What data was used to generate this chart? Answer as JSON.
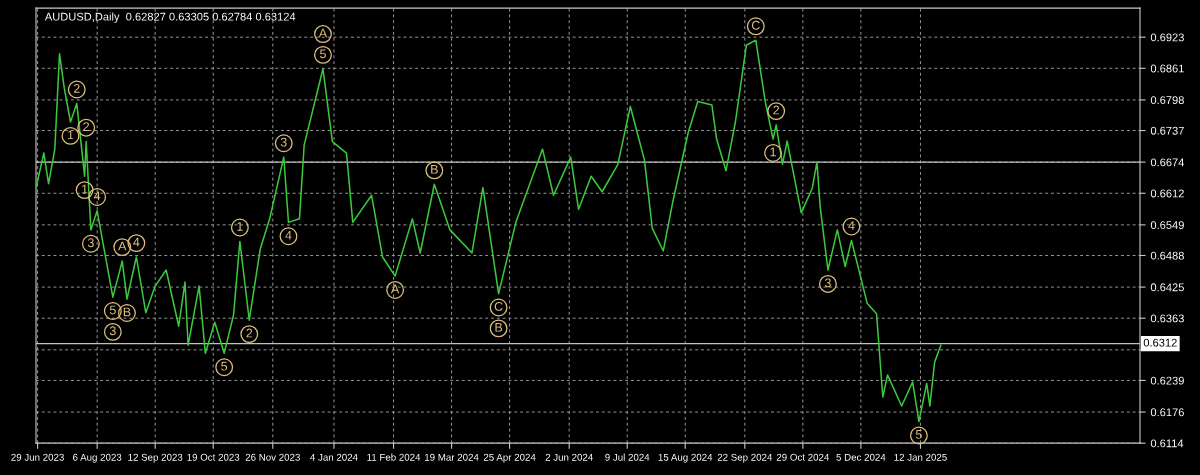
{
  "chart_data": {
    "type": "line",
    "title": "AUDUSD,Daily  0.62827 0.63305 0.62784 0.63124",
    "x": [
      "2023-06-28",
      "2023-07-03",
      "2023-07-06",
      "2023-07-10",
      "2023-07-13",
      "2023-07-16",
      "2023-07-20",
      "2023-07-24",
      "2023-07-29",
      "2023-07-30",
      "2023-08-02",
      "2023-08-06",
      "2023-08-16",
      "2023-08-22",
      "2023-08-25",
      "2023-08-31",
      "2023-09-06",
      "2023-09-12",
      "2023-09-19",
      "2023-09-27",
      "2023-10-01",
      "2023-10-03",
      "2023-10-10",
      "2023-10-14",
      "2023-10-20",
      "2023-10-26",
      "2023-11-01",
      "2023-11-05",
      "2023-11-11",
      "2023-11-18",
      "2023-11-24",
      "2023-12-03",
      "2023-12-06",
      "2023-12-13",
      "2023-12-16",
      "2023-12-28",
      "2024-01-03",
      "2024-01-12",
      "2024-01-16",
      "2024-01-28",
      "2024-02-04",
      "2024-02-12",
      "2024-02-23",
      "2024-02-28",
      "2024-03-08",
      "2024-03-18",
      "2024-04-01",
      "2024-04-08",
      "2024-04-18",
      "2024-04-29",
      "2024-05-07",
      "2024-05-16",
      "2024-05-23",
      "2024-06-03",
      "2024-06-08",
      "2024-06-16",
      "2024-06-23",
      "2024-07-03",
      "2024-07-11",
      "2024-07-20",
      "2024-07-25",
      "2024-08-01",
      "2024-08-07",
      "2024-08-17",
      "2024-08-23",
      "2024-09-01",
      "2024-09-04",
      "2024-09-10",
      "2024-09-16",
      "2024-09-23",
      "2024-09-29",
      "2024-10-05",
      "2024-10-10",
      "2024-10-12",
      "2024-10-16",
      "2024-10-19",
      "2024-10-28",
      "2024-11-04",
      "2024-11-07",
      "2024-11-09",
      "2024-11-14",
      "2024-11-20",
      "2024-11-25",
      "2024-11-29",
      "2024-12-09",
      "2024-12-15",
      "2024-12-19",
      "2024-12-22",
      "2024-12-31",
      "2025-01-07",
      "2025-01-11",
      "2025-01-16",
      "2025-01-18",
      "2025-01-21",
      "2025-01-25"
    ],
    "series": [
      {
        "color": "#3cc83c",
        "values": [
          0.6623,
          0.6692,
          0.6631,
          0.67,
          0.689,
          0.6822,
          0.6754,
          0.6791,
          0.6646,
          0.6715,
          0.6539,
          0.6577,
          0.6405,
          0.6477,
          0.6401,
          0.6485,
          0.6374,
          0.6427,
          0.6459,
          0.6347,
          0.6435,
          0.6309,
          0.6427,
          0.6293,
          0.6355,
          0.6293,
          0.637,
          0.6516,
          0.6359,
          0.6501,
          0.6561,
          0.6684,
          0.6554,
          0.6561,
          0.6708,
          0.686,
          0.6715,
          0.6692,
          0.6554,
          0.6608,
          0.6485,
          0.6447,
          0.6561,
          0.6493,
          0.663,
          0.6539,
          0.6493,
          0.6623,
          0.6412,
          0.6554,
          0.6623,
          0.67,
          0.6608,
          0.6684,
          0.658,
          0.6646,
          0.6615,
          0.6669,
          0.6785,
          0.6678,
          0.6542,
          0.6497,
          0.6594,
          0.6734,
          0.6795,
          0.6788,
          0.672,
          0.6657,
          0.6754,
          0.6907,
          0.6917,
          0.6795,
          0.672,
          0.6748,
          0.667,
          0.6716,
          0.6573,
          0.6622,
          0.6674,
          0.6587,
          0.6459,
          0.6539,
          0.6466,
          0.6518,
          0.6393,
          0.6372,
          0.6206,
          0.625,
          0.6188,
          0.6236,
          0.6157,
          0.6233,
          0.6188,
          0.6275,
          0.6309
        ]
      }
    ],
    "xlim": [
      "2023-06-28",
      "2025-06-01"
    ],
    "xticks": [
      {
        "value": "2023-06-29",
        "label": "29 Jun 2023"
      },
      {
        "value": "2023-08-06",
        "label": "6 Aug 2023"
      },
      {
        "value": "2023-09-12",
        "label": "12 Sep 2023"
      },
      {
        "value": "2023-10-19",
        "label": "19 Oct 2023"
      },
      {
        "value": "2023-11-26",
        "label": "26 Nov 2023"
      },
      {
        "value": "2024-01-04",
        "label": "4 Jan 2024"
      },
      {
        "value": "2024-02-11",
        "label": "11 Feb 2024"
      },
      {
        "value": "2024-03-19",
        "label": "19 Mar 2024"
      },
      {
        "value": "2024-04-25",
        "label": "25 Apr 2024"
      },
      {
        "value": "2024-06-02",
        "label": "2 Jun 2024"
      },
      {
        "value": "2024-07-09",
        "label": "9 Jul 2024"
      },
      {
        "value": "2024-08-15",
        "label": "15 Aug 2024"
      },
      {
        "value": "2024-09-22",
        "label": "22 Sep 2024"
      },
      {
        "value": "2024-10-29",
        "label": "29 Oct 2024"
      },
      {
        "value": "2024-12-05",
        "label": "5 Dec 2024"
      },
      {
        "value": "2025-01-12",
        "label": "12 Jan 2025"
      }
    ],
    "ylim": [
      0.6114,
      0.6981
    ],
    "yticks": [
      0.6114,
      0.6176,
      0.6239,
      {
        "value": 0.63,
        "label": null
      },
      0.6363,
      0.6425,
      0.6488,
      0.6549,
      0.6612,
      0.6674,
      0.6737,
      0.6798,
      0.6861,
      0.6923
    ],
    "ref_lines": [
      {
        "axis": "y",
        "value": 0.6674,
        "color": "#c0c0c0"
      },
      {
        "axis": "y",
        "value": 0.63124,
        "label": "0.6312",
        "color": "#c0c0c0"
      }
    ],
    "grid": true,
    "legend": false,
    "marker": "none",
    "line_style": "solid",
    "annotations": [
      {
        "text": "2",
        "x": "2023-07-30",
        "y": 0.6715
      },
      {
        "text": "1",
        "x": "2023-07-29",
        "y": 0.6646
      },
      {
        "text": "4",
        "x": "2023-08-06",
        "y": 0.6577
      },
      {
        "text": "3",
        "x": "2023-08-02",
        "y": 0.6539
      },
      {
        "text": "A",
        "x": "2023-08-22",
        "y": 0.6477
      },
      {
        "text": "5",
        "x": "2023-08-16",
        "y": 0.6405
      },
      {
        "text": "B",
        "x": "2023-08-25",
        "y": 0.6401
      },
      {
        "text": "1",
        "x": "2023-11-05",
        "y": 0.6516
      },
      {
        "text": "2",
        "x": "2023-11-11",
        "y": 0.6359
      },
      {
        "text": "3",
        "x": "2023-12-03",
        "y": 0.6684
      },
      {
        "text": "4",
        "x": "2023-12-06",
        "y": 0.6554
      },
      {
        "text": "5",
        "x": "2023-12-28",
        "y": 0.686
      },
      {
        "text": "A",
        "x": "2024-02-12",
        "y": 0.6447
      },
      {
        "text": "B",
        "x": "2024-03-08",
        "y": 0.663
      },
      {
        "text": "C",
        "x": "2024-04-18",
        "y": 0.6412
      },
      {
        "text": "1",
        "x": "2023-07-20",
        "y": 0.6754
      },
      {
        "text": "2",
        "x": "2023-07-24",
        "y": 0.6791
      },
      {
        "text": "3",
        "x": "2023-08-16",
        "y": 0.6405
      },
      {
        "text": "4",
        "x": "2023-08-31",
        "y": 0.6485
      },
      {
        "text": "5",
        "x": "2023-10-26",
        "y": 0.6293
      },
      {
        "text": "A",
        "x": "2023-12-28",
        "y": 0.686
      },
      {
        "text": "B",
        "x": "2024-04-18",
        "y": 0.6412
      },
      {
        "text": "C",
        "x": "2024-09-29",
        "y": 0.6917
      },
      {
        "text": "1",
        "x": "2024-10-10",
        "y": 0.672
      },
      {
        "text": "2",
        "x": "2024-10-12",
        "y": 0.6748
      },
      {
        "text": "3",
        "x": "2024-11-14",
        "y": 0.6459
      },
      {
        "text": "4",
        "x": "2024-11-29",
        "y": 0.6518
      },
      {
        "text": "5",
        "x": "2025-01-11",
        "y": 0.6157
      }
    ]
  }
}
